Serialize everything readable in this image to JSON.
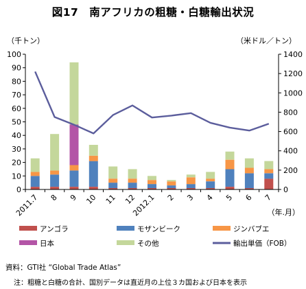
{
  "title": "図17　南アフリカの粗糖・白糖輸出状況",
  "source_note": "資料：GTI社 “Global Trade Atlas”",
  "footnote": "注：粗糖と白糖の合計、国別データは直近月の上位３カ国および日本を表示",
  "chart_data": {
    "type": "bar",
    "stacked": true,
    "categories": [
      "2011.7",
      "8",
      "9",
      "10",
      "11",
      "12",
      "2012.1",
      "2",
      "3",
      "4",
      "5",
      "6",
      "7"
    ],
    "xlabel": "（年.月）",
    "ylabel_left": "（千トン）",
    "ylabel_right": "（米ドル／トン）",
    "ylim_left": [
      0,
      100
    ],
    "yticks_left": [
      0,
      10,
      20,
      30,
      40,
      50,
      60,
      70,
      80,
      90,
      100
    ],
    "ylim_right": [
      0,
      1400
    ],
    "yticks_right": [
      0,
      200,
      400,
      600,
      800,
      1000,
      1200,
      1400
    ],
    "grid": false,
    "legend_position": "bottom",
    "series": [
      {
        "name": "アンゴラ",
        "color": "#c0504d",
        "values": [
          2,
          2,
          2,
          2,
          1,
          1,
          1,
          1,
          1,
          1,
          2,
          1,
          8
        ]
      },
      {
        "name": "モザンビーク",
        "color": "#4f81bd",
        "values": [
          8,
          9,
          12,
          19,
          4,
          4,
          3,
          2,
          3,
          5,
          13,
          11,
          4
        ]
      },
      {
        "name": "ジンバブエ",
        "color": "#f79646",
        "values": [
          3,
          3,
          4,
          4,
          3,
          3,
          3,
          3,
          5,
          2,
          7,
          4,
          3
        ]
      },
      {
        "name": "日本",
        "color": "#b355a6",
        "values": [
          0,
          0,
          30,
          0,
          0,
          0,
          0,
          0,
          0,
          0,
          0,
          0,
          0
        ]
      },
      {
        "name": "その他",
        "color": "#c4d79b",
        "values": [
          10,
          27,
          46,
          8,
          9,
          7,
          3,
          1,
          2,
          5,
          6,
          7,
          6
        ]
      }
    ],
    "line": {
      "name": "輸出単価（FOB）",
      "color": "#5b5d9c",
      "axis": "right",
      "values": [
        1220,
        750,
        670,
        580,
        770,
        870,
        745,
        765,
        790,
        690,
        640,
        610,
        680
      ]
    }
  }
}
